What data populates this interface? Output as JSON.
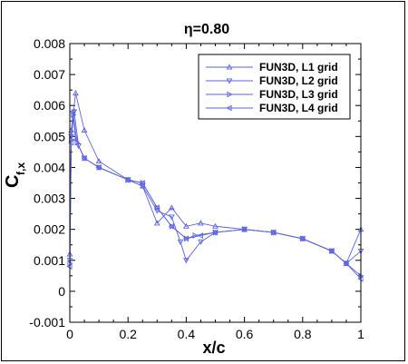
{
  "chart_data": {
    "type": "line",
    "title": "η=0.80",
    "xlabel": "x/c",
    "ylabel_main": "C",
    "ylabel_sub": "f,x",
    "xlim": [
      0,
      1
    ],
    "ylim": [
      -0.001,
      0.008
    ],
    "xticks": [
      "0",
      "0.2",
      "0.4",
      "0.6",
      "0.8",
      "1"
    ],
    "yticks": [
      "-0.001",
      "0",
      "0.001",
      "0.002",
      "0.003",
      "0.004",
      "0.005",
      "0.006",
      "0.007",
      "0.008"
    ],
    "legend_position": "top-right",
    "series_color": "#5b63e0",
    "series": [
      {
        "name": "FUN3D, L1 grid",
        "marker": "triangle-up",
        "x": [
          0.0,
          0.005,
          0.02,
          0.05,
          0.1,
          0.2,
          0.25,
          0.3,
          0.35,
          0.4,
          0.45,
          0.5,
          0.6,
          0.7,
          0.8,
          0.9,
          0.95,
          1.0
        ],
        "y": [
          0.0012,
          0.0052,
          0.0064,
          0.0052,
          0.0042,
          0.0036,
          0.0034,
          0.0022,
          0.0027,
          0.0021,
          0.0022,
          0.0021,
          0.002,
          0.0019,
          0.0017,
          0.0013,
          0.0009,
          0.002
        ]
      },
      {
        "name": "FUN3D, L2 grid",
        "marker": "triangle-down",
        "x": [
          0.0,
          0.005,
          0.015,
          0.03,
          0.05,
          0.1,
          0.2,
          0.25,
          0.3,
          0.35,
          0.38,
          0.4,
          0.45,
          0.5,
          0.6,
          0.7,
          0.8,
          0.9,
          0.95,
          1.0
        ],
        "y": [
          0.001,
          0.005,
          0.0058,
          0.0047,
          0.0043,
          0.004,
          0.0036,
          0.0034,
          0.0026,
          0.0024,
          0.0016,
          0.001,
          0.0016,
          0.0019,
          0.002,
          0.0019,
          0.0017,
          0.0013,
          0.0009,
          0.0013
        ]
      },
      {
        "name": "FUN3D, L3 grid",
        "marker": "triangle-right",
        "x": [
          0.0,
          0.005,
          0.012,
          0.025,
          0.05,
          0.1,
          0.2,
          0.25,
          0.3,
          0.35,
          0.4,
          0.43,
          0.5,
          0.6,
          0.7,
          0.8,
          0.9,
          0.95,
          1.0
        ],
        "y": [
          0.0009,
          0.0049,
          0.0057,
          0.0048,
          0.0043,
          0.004,
          0.0036,
          0.0035,
          0.0027,
          0.0021,
          0.0017,
          0.0018,
          0.0019,
          0.002,
          0.0019,
          0.0017,
          0.0013,
          0.0009,
          0.0005
        ]
      },
      {
        "name": "FUN3D, L4 grid",
        "marker": "triangle-left",
        "x": [
          0.0,
          0.005,
          0.01,
          0.02,
          0.05,
          0.1,
          0.2,
          0.25,
          0.3,
          0.35,
          0.4,
          0.45,
          0.5,
          0.6,
          0.7,
          0.8,
          0.9,
          0.95,
          1.0
        ],
        "y": [
          0.0008,
          0.0048,
          0.0058,
          0.0049,
          0.0043,
          0.004,
          0.0036,
          0.0035,
          0.0027,
          0.0021,
          0.0017,
          0.0018,
          0.0019,
          0.002,
          0.0019,
          0.0017,
          0.0013,
          0.0009,
          0.0004
        ]
      }
    ]
  }
}
